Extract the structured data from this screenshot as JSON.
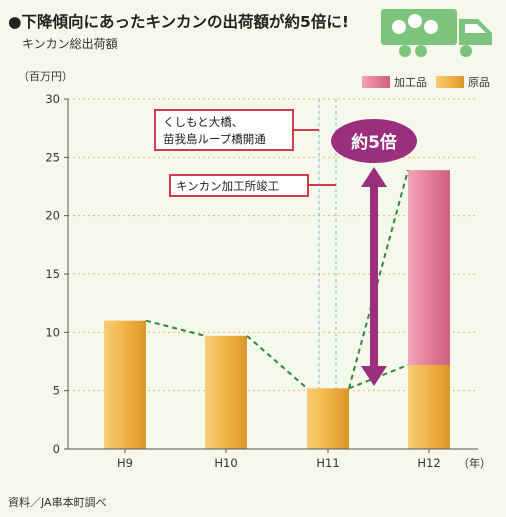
{
  "header": {
    "title": "●下降傾向にあったキンカンの出荷額が約5倍に!",
    "subtitle": "キンカン総出荷額",
    "truck_icon_color": "#7cc47e"
  },
  "source": "資料／JA串本町調べ",
  "colors": {
    "raw": "#f2b64a",
    "processed": "#e6809b",
    "trend": "#2e8b3a",
    "arrow": "#9b2f7d",
    "callout_border": "#d33a4a",
    "grid": "#e8b86a",
    "event_line": "#7fb2d8"
  },
  "chart_data": {
    "type": "bar",
    "stacked": true,
    "categories": [
      "H9",
      "H10",
      "H11",
      "H12"
    ],
    "series": [
      {
        "name": "原品",
        "values": [
          11,
          9.7,
          5.2,
          7.2
        ]
      },
      {
        "name": "加工品",
        "values": [
          0,
          0,
          0,
          16.7
        ]
      }
    ],
    "ylabel": "（百万円）",
    "xlabel": "（年）",
    "ylim": [
      0,
      30
    ],
    "yticks": [
      0,
      5,
      10,
      15,
      20,
      25,
      30
    ],
    "grid": true,
    "legend": "top-right",
    "annotations": {
      "event1_lines": [
        "くしもと大橋、",
        "苗我島ループ橋開通"
      ],
      "event2": "キンカン加工所竣工",
      "ratio": "約5倍"
    }
  }
}
